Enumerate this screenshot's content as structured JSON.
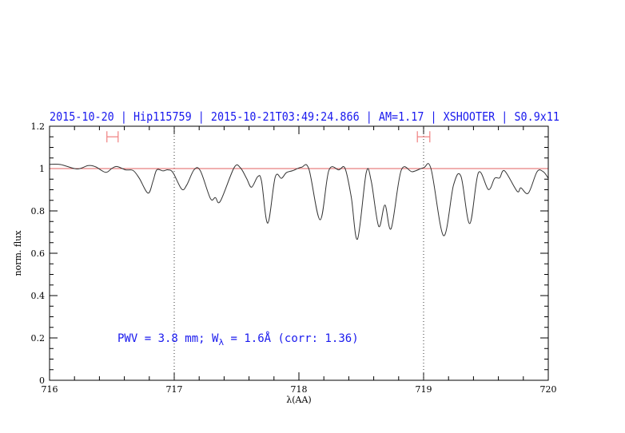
{
  "chart_data": {
    "type": "line",
    "title": "2015-10-20 | Hip115759 | 2015-10-21T03:49:24.866 | AM=1.17 | XSHOOTER | S0.9x11",
    "xlabel": "λ(AA)",
    "ylabel": "norm. flux",
    "xlim": [
      716,
      720
    ],
    "ylim": [
      0,
      1.2
    ],
    "x_ticks": [
      "716",
      "717",
      "718",
      "719",
      "720"
    ],
    "y_ticks": [
      "0",
      "0.2",
      "0.4",
      "0.6",
      "0.8",
      "1",
      "1.2"
    ],
    "x_tick_values": [
      716,
      717,
      718,
      719,
      720
    ],
    "y_tick_values": [
      0,
      0.2,
      0.4,
      0.6,
      0.8,
      1,
      1.2
    ],
    "grid": false,
    "reference_line_y": 1.0,
    "vertical_dotted_lines_x": [
      717,
      719
    ],
    "error_bars": [
      {
        "x": [
          716.46,
          716.55
        ],
        "y": 1.15
      },
      {
        "x": [
          718.95,
          719.05
        ],
        "y": 1.15
      }
    ],
    "annotation": {
      "prefix": "PWV = 3.8 mm; W",
      "sub": "λ",
      "suffix": " = 1.6Å (corr: 1.36)"
    },
    "series": [
      {
        "x": [
          716.0,
          716.09,
          716.22,
          716.31,
          716.37,
          716.45,
          716.5,
          716.54,
          716.61,
          716.67,
          716.72,
          716.79,
          716.83,
          716.86,
          716.91,
          716.95,
          716.99,
          717.06,
          717.1,
          717.16,
          717.21,
          717.29,
          717.33,
          717.37,
          717.48,
          717.53,
          717.58,
          717.62,
          717.67,
          717.7,
          717.75,
          717.81,
          717.86,
          717.9,
          717.95,
          718.02,
          718.08,
          718.17,
          718.24,
          718.32,
          718.37,
          718.42,
          718.47,
          718.54,
          718.58,
          718.64,
          718.69,
          718.74,
          718.82,
          718.91,
          719.0,
          719.06,
          719.16,
          719.24,
          719.3,
          719.37,
          719.44,
          719.52,
          719.57,
          719.61,
          719.65,
          719.75,
          719.78,
          719.84,
          719.91,
          719.96,
          720.0
        ],
        "y": [
          1.02,
          1.019,
          0.998,
          1.014,
          1.008,
          0.982,
          1.001,
          1.01,
          0.994,
          0.991,
          0.954,
          0.884,
          0.941,
          0.994,
          0.989,
          0.994,
          0.981,
          0.903,
          0.922,
          0.995,
          0.989,
          0.859,
          0.863,
          0.846,
          1.004,
          1.004,
          0.954,
          0.912,
          0.962,
          0.941,
          0.742,
          0.96,
          0.954,
          0.981,
          0.99,
          1.006,
          0.998,
          0.758,
          0.991,
          0.994,
          1.001,
          0.865,
          0.667,
          0.981,
          0.941,
          0.727,
          0.828,
          0.717,
          0.991,
          0.985,
          1.004,
          0.998,
          0.683,
          0.922,
          0.963,
          0.74,
          0.981,
          0.901,
          0.954,
          0.956,
          0.989,
          0.893,
          0.909,
          0.884,
          0.985,
          0.985,
          0.954
        ]
      }
    ],
    "colors": {
      "series": "#333333",
      "reference": "#e06060",
      "error_bars": "#f08080",
      "text": "#1a1aee",
      "axes": "#000000"
    }
  }
}
